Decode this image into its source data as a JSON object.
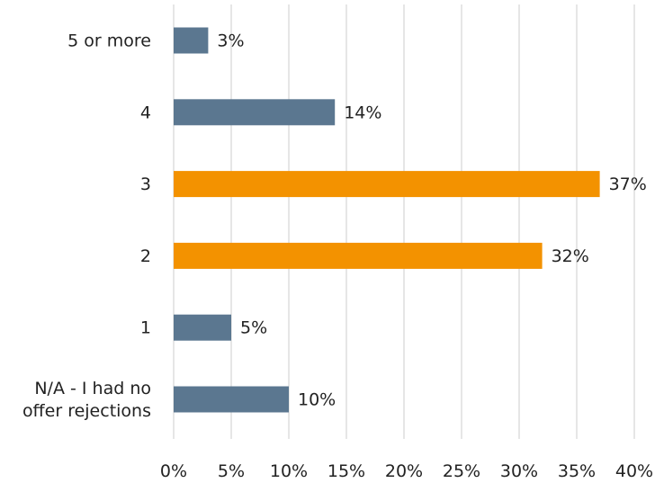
{
  "chart_data": {
    "type": "bar",
    "orientation": "horizontal",
    "categories": [
      "5 or more",
      "4",
      "3",
      "2",
      "1",
      "N/A - I had no offer rejections"
    ],
    "category_lines": [
      [
        "5 or more"
      ],
      [
        "4"
      ],
      [
        "3"
      ],
      [
        "2"
      ],
      [
        "1"
      ],
      [
        "N/A - I had no",
        "offer rejections"
      ]
    ],
    "values": [
      3,
      14,
      37,
      32,
      5,
      10
    ],
    "value_labels": [
      "3%",
      "14%",
      "37%",
      "32%",
      "5%",
      "10%"
    ],
    "bar_colors": [
      "#5b7790",
      "#5b7790",
      "#f39200",
      "#f39200",
      "#5b7790",
      "#5b7790"
    ],
    "xlim": [
      0,
      40
    ],
    "x_ticks": [
      0,
      5,
      10,
      15,
      20,
      25,
      30,
      35,
      40
    ],
    "x_tick_labels": [
      "0%",
      "5%",
      "10%",
      "15%",
      "20%",
      "25%",
      "30%",
      "35%",
      "40%"
    ],
    "title": "",
    "xlabel": "",
    "ylabel": "",
    "grid": "vertical",
    "legend": "none"
  }
}
